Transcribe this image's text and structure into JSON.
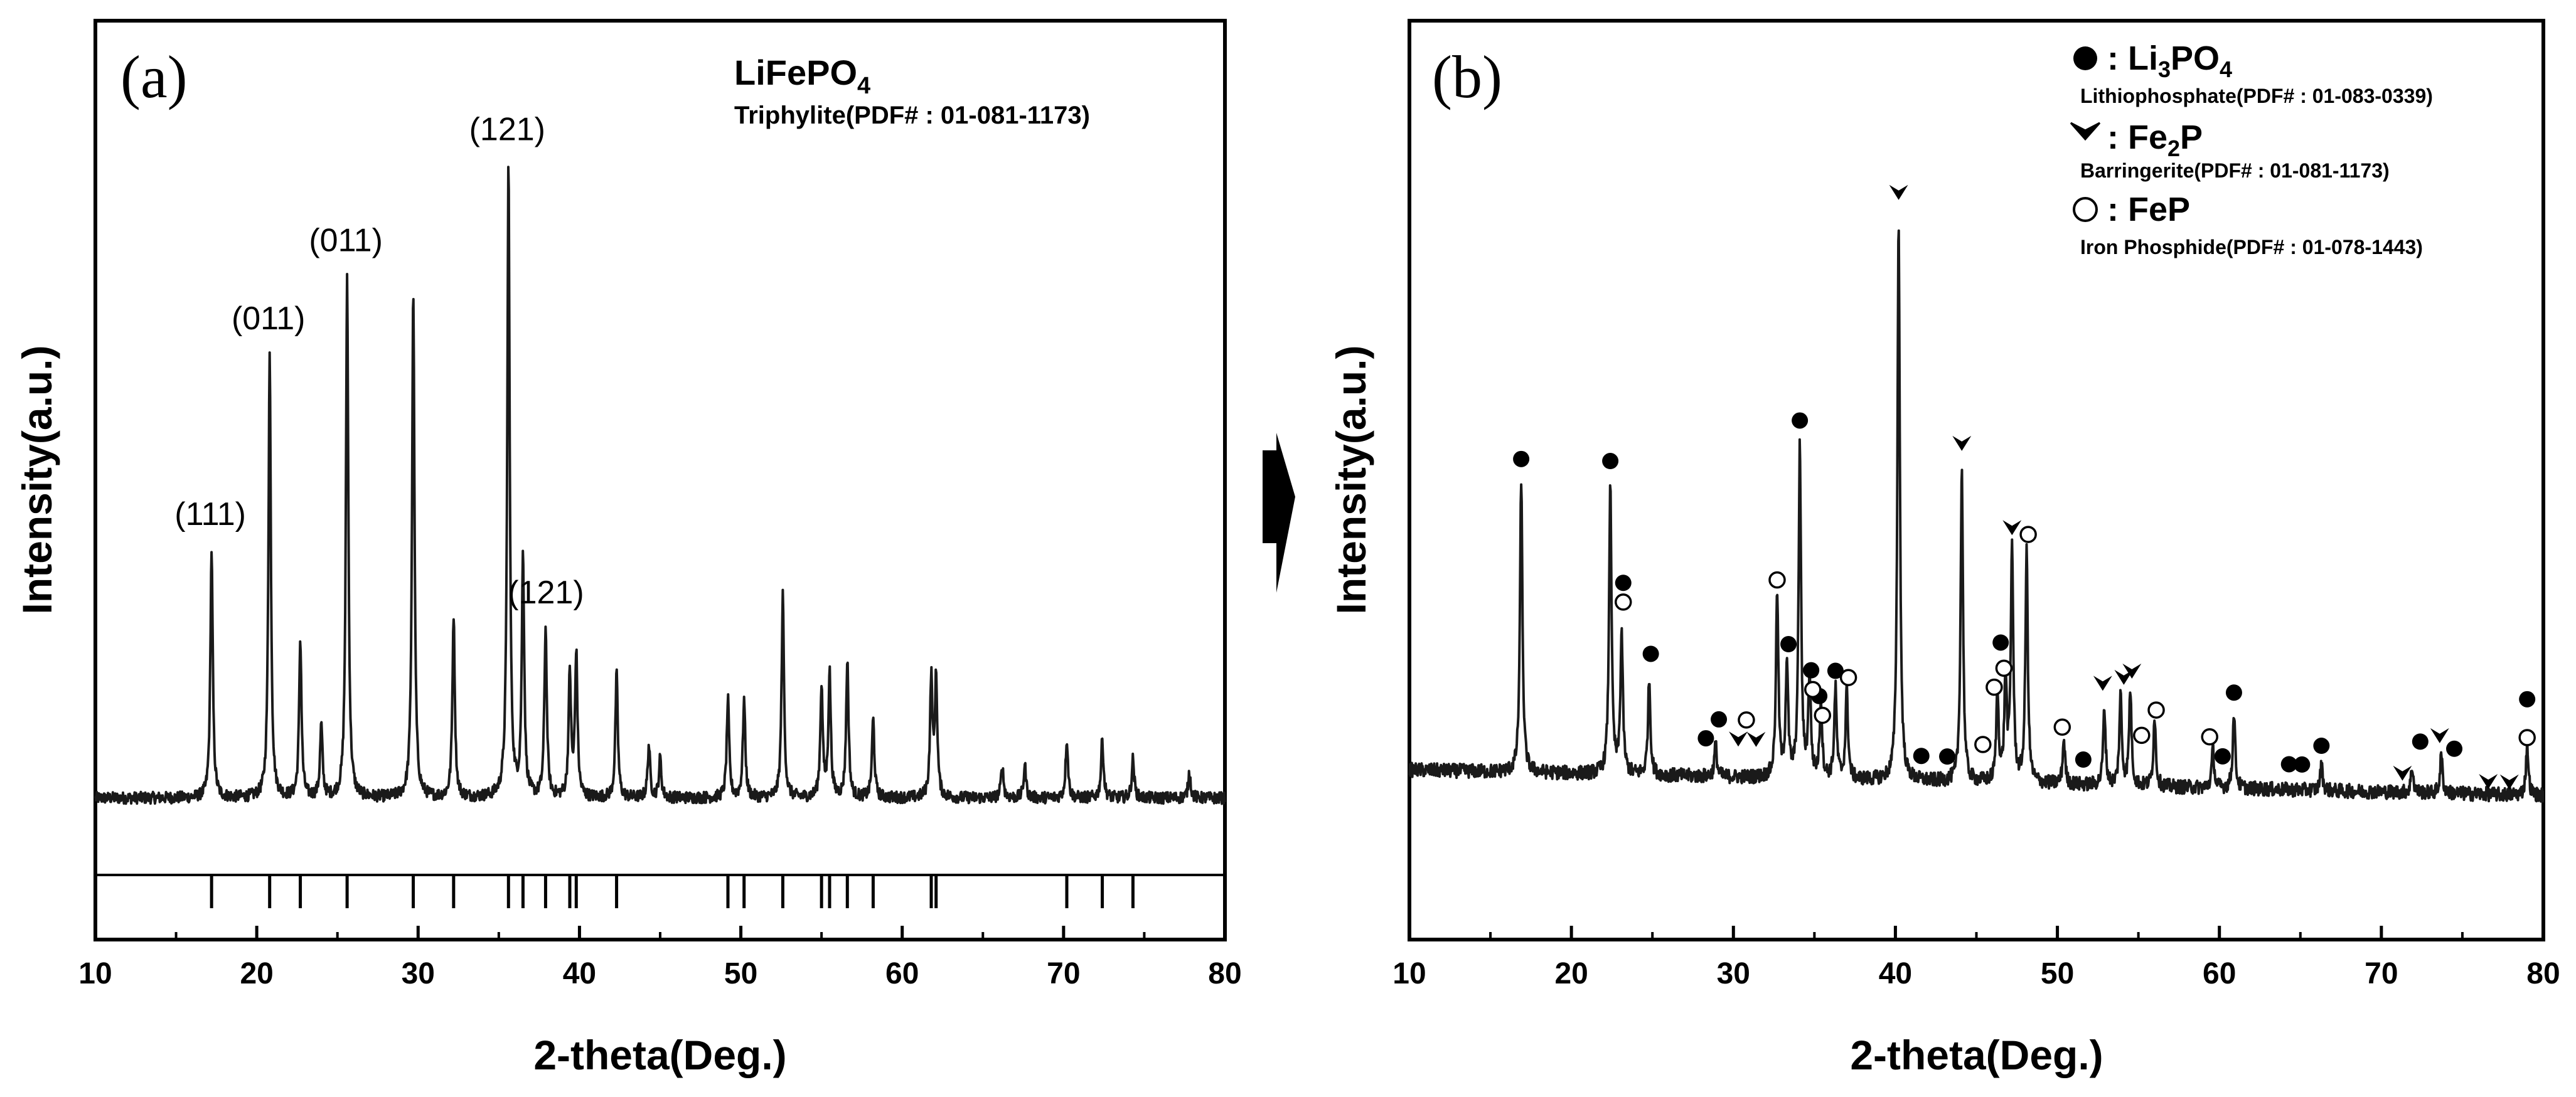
{
  "chart_data": [
    {
      "panel": "(a)",
      "type": "line",
      "title": "LiFePO",
      "title_subscript": "4",
      "subtitle": "Triphylite(PDF# : 01-081-1173)",
      "xlabel": "2-theta(Deg.)",
      "ylabel": "Intensity(a.u.)",
      "xlim": [
        10,
        80
      ],
      "xticks": [
        "10",
        "20",
        "30",
        "40",
        "50",
        "60",
        "70",
        "80"
      ],
      "ylim": [
        0,
        1
      ],
      "grid": false,
      "peak_labels": [
        {
          "text": "(111)",
          "x": 17.2
        },
        {
          "text": "(011)",
          "x": 20.8
        },
        {
          "text": "(011)",
          "x": 25.6
        },
        {
          "text": "(121)",
          "x": 35.6
        },
        {
          "text": "(121)",
          "x": 38.0
        }
      ],
      "series": [
        {
          "baseline": 0.065,
          "peaks": [
            {
              "x": 17.2,
              "y": 0.38
            },
            {
              "x": 20.8,
              "y": 0.68
            },
            {
              "x": 22.7,
              "y": 0.24
            },
            {
              "x": 24.0,
              "y": 0.11
            },
            {
              "x": 25.6,
              "y": 0.8
            },
            {
              "x": 29.7,
              "y": 0.78
            },
            {
              "x": 32.2,
              "y": 0.28
            },
            {
              "x": 35.6,
              "y": 0.97
            },
            {
              "x": 36.5,
              "y": 0.37
            },
            {
              "x": 37.9,
              "y": 0.26
            },
            {
              "x": 39.4,
              "y": 0.19
            },
            {
              "x": 39.8,
              "y": 0.22
            },
            {
              "x": 42.3,
              "y": 0.19
            },
            {
              "x": 44.3,
              "y": 0.08
            },
            {
              "x": 45.0,
              "y": 0.06
            },
            {
              "x": 49.2,
              "y": 0.15
            },
            {
              "x": 50.2,
              "y": 0.15
            },
            {
              "x": 52.6,
              "y": 0.31
            },
            {
              "x": 55.0,
              "y": 0.17
            },
            {
              "x": 55.5,
              "y": 0.19
            },
            {
              "x": 56.6,
              "y": 0.21
            },
            {
              "x": 58.2,
              "y": 0.12
            },
            {
              "x": 61.8,
              "y": 0.18
            },
            {
              "x": 62.1,
              "y": 0.18
            },
            {
              "x": 66.2,
              "y": 0.05
            },
            {
              "x": 67.6,
              "y": 0.05
            },
            {
              "x": 70.2,
              "y": 0.09
            },
            {
              "x": 72.4,
              "y": 0.09
            },
            {
              "x": 74.3,
              "y": 0.06
            },
            {
              "x": 77.8,
              "y": 0.04
            }
          ]
        }
      ],
      "reference_lines": [
        17.2,
        20.8,
        22.7,
        25.6,
        29.7,
        32.2,
        35.6,
        36.5,
        37.9,
        39.4,
        39.8,
        42.3,
        49.2,
        50.2,
        52.6,
        55.0,
        55.5,
        56.6,
        58.2,
        61.8,
        62.1,
        70.2,
        72.4,
        74.3
      ]
    },
    {
      "panel": "(b)",
      "type": "line",
      "xlabel": "2-theta(Deg.)",
      "ylabel": "Intensity(a.u.)",
      "xlim": [
        10,
        80
      ],
      "xticks": [
        "10",
        "20",
        "30",
        "40",
        "50",
        "60",
        "70",
        "80"
      ],
      "ylim": [
        0,
        1
      ],
      "grid": false,
      "legend": {
        "placement": "top-right",
        "entries": [
          {
            "marker": "filled-circle",
            "symbol": ": Li",
            "sub1": "3",
            "mid": "PO",
            "sub2": "4",
            "description": "Lithiophosphate(PDF# : 01-083-0339)"
          },
          {
            "marker": "arrowhead",
            "symbol": ": Fe",
            "sub1": "2",
            "mid": "P",
            "sub2": "",
            "description": "Barringerite(PDF# : 01-081-1173)"
          },
          {
            "marker": "open-circle",
            "symbol": ": FeP",
            "sub1": "",
            "mid": "",
            "sub2": "",
            "description": "Iron Phosphide(PDF# : 01-078-1443)"
          }
        ]
      },
      "series": [
        {
          "baseline_start": 0.12,
          "baseline_end": 0.08,
          "peaks": [
            {
              "x": 16.9,
              "y": 0.46
            },
            {
              "x": 22.4,
              "y": 0.46
            },
            {
              "x": 23.1,
              "y": 0.22
            },
            {
              "x": 24.8,
              "y": 0.15
            },
            {
              "x": 28.9,
              "y": 0.05
            },
            {
              "x": 32.7,
              "y": 0.29
            },
            {
              "x": 33.3,
              "y": 0.18
            },
            {
              "x": 34.1,
              "y": 0.52
            },
            {
              "x": 34.7,
              "y": 0.16
            },
            {
              "x": 35.4,
              "y": 0.12
            },
            {
              "x": 36.3,
              "y": 0.14
            },
            {
              "x": 37.0,
              "y": 0.14
            },
            {
              "x": 40.2,
              "y": 0.88
            },
            {
              "x": 44.1,
              "y": 0.49
            },
            {
              "x": 46.3,
              "y": 0.14
            },
            {
              "x": 46.8,
              "y": 0.16
            },
            {
              "x": 47.2,
              "y": 0.37
            },
            {
              "x": 48.1,
              "y": 0.36
            },
            {
              "x": 50.4,
              "y": 0.07
            },
            {
              "x": 52.9,
              "y": 0.12
            },
            {
              "x": 53.9,
              "y": 0.14
            },
            {
              "x": 54.5,
              "y": 0.15
            },
            {
              "x": 56.0,
              "y": 0.11
            },
            {
              "x": 59.6,
              "y": 0.06
            },
            {
              "x": 60.9,
              "y": 0.12
            },
            {
              "x": 66.3,
              "y": 0.04
            },
            {
              "x": 71.9,
              "y": 0.04
            },
            {
              "x": 73.7,
              "y": 0.06
            },
            {
              "x": 79.0,
              "y": 0.08
            }
          ]
        }
      ],
      "markers": {
        "li3po4": [
          [
            16.9,
            0.49
          ],
          [
            22.4,
            0.49
          ],
          [
            23.2,
            0.3
          ],
          [
            24.9,
            0.19
          ],
          [
            28.3,
            0.06
          ],
          [
            29.1,
            0.09
          ],
          [
            33.4,
            0.21
          ],
          [
            34.1,
            0.56
          ],
          [
            34.8,
            0.17
          ],
          [
            35.3,
            0.13
          ],
          [
            36.3,
            0.17
          ],
          [
            41.6,
            0.04
          ],
          [
            43.2,
            0.04
          ],
          [
            46.5,
            0.22
          ],
          [
            51.6,
            0.04
          ],
          [
            60.2,
            0.05
          ],
          [
            60.9,
            0.15
          ],
          [
            64.3,
            0.04
          ],
          [
            65.1,
            0.04
          ],
          [
            66.3,
            0.07
          ],
          [
            72.4,
            0.08
          ],
          [
            74.5,
            0.07
          ],
          [
            79.0,
            0.15
          ]
        ],
        "fe2p": [
          [
            30.3,
            0.06
          ],
          [
            31.4,
            0.06
          ],
          [
            40.2,
            0.92
          ],
          [
            44.1,
            0.53
          ],
          [
            47.2,
            0.4
          ],
          [
            52.8,
            0.16
          ],
          [
            54.1,
            0.17
          ],
          [
            54.6,
            0.18
          ],
          [
            71.3,
            0.03
          ],
          [
            73.6,
            0.09
          ],
          [
            76.6,
            0.02
          ],
          [
            77.9,
            0.02
          ]
        ],
        "fep": [
          [
            23.2,
            0.27
          ],
          [
            30.8,
            0.09
          ],
          [
            32.7,
            0.31
          ],
          [
            34.9,
            0.14
          ],
          [
            35.5,
            0.1
          ],
          [
            37.1,
            0.16
          ],
          [
            45.4,
            0.06
          ],
          [
            46.1,
            0.15
          ],
          [
            46.7,
            0.18
          ],
          [
            48.2,
            0.39
          ],
          [
            50.3,
            0.09
          ],
          [
            55.2,
            0.08
          ],
          [
            56.1,
            0.12
          ],
          [
            59.4,
            0.08
          ],
          [
            79.0,
            0.09
          ]
        ]
      }
    }
  ],
  "panel_a": {
    "letter": "(a)"
  },
  "panel_b": {
    "letter": "(b)"
  },
  "colors": {
    "line": "#1a1a1a",
    "axis": "#000000",
    "background": "#ffffff"
  }
}
